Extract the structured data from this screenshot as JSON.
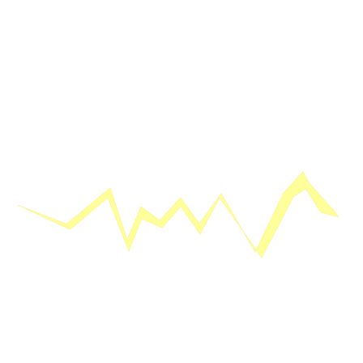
{
  "icon": {
    "name": "waveform-icon",
    "color": "#ffff99",
    "edge_color": "#fff5a0"
  }
}
